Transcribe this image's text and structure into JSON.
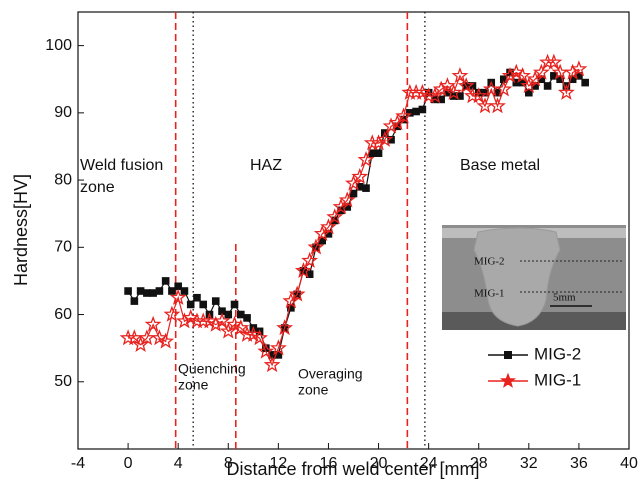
{
  "chart_data": {
    "type": "line",
    "xlabel": "Distance from weld center [mm]",
    "ylabel": "Hardness[HV]",
    "xlim": [
      -4,
      40
    ],
    "xticks": [
      -4,
      0,
      4,
      8,
      12,
      16,
      20,
      24,
      28,
      32,
      36,
      40
    ],
    "ylim": [
      40,
      105
    ],
    "yticks": [
      50,
      60,
      70,
      80,
      90,
      100
    ],
    "legend": "lower right",
    "annotations": [
      "Weld fusion",
      "zone",
      "HAZ",
      "Base metal",
      "Quenching",
      "zone",
      "Overaging",
      "zone"
    ],
    "vlines": [
      {
        "x": 3.8,
        "color": "#e8231f",
        "style": "dashed"
      },
      {
        "x": 5.2,
        "color": "#222222",
        "style": "dotted"
      },
      {
        "x": 8.6,
        "color": "#e8231f",
        "style": "dashed",
        "top": 70.5
      },
      {
        "x": 22.3,
        "color": "#e8231f",
        "style": "dashed"
      },
      {
        "x": 23.7,
        "color": "#222222",
        "style": "dotted"
      }
    ],
    "inset": {
      "labels": [
        "MIG-2",
        "MIG-1",
        "5mm"
      ]
    },
    "series": [
      {
        "name": "MIG-2",
        "color": "#111111",
        "marker": "square",
        "x": [
          0,
          0.5,
          1,
          1.5,
          2,
          2.5,
          3,
          3.5,
          4,
          4.5,
          5,
          5.5,
          6,
          6.5,
          7,
          7.5,
          8,
          8.5,
          9,
          9.5,
          10,
          10.5,
          11,
          11.5,
          12,
          12.5,
          13,
          13.5,
          14,
          14.5,
          15,
          15.5,
          16,
          16.5,
          17,
          17.5,
          18,
          18.5,
          19,
          19.5,
          20,
          20.5,
          21,
          21.5,
          22,
          22.5,
          23,
          23.5,
          24,
          24.5,
          25,
          25.5,
          26,
          26.5,
          27,
          27.5,
          28,
          28.5,
          29,
          29.5,
          30,
          30.5,
          31,
          31.5,
          32,
          32.5,
          33,
          33.5,
          34,
          34.5,
          35,
          35.5,
          36,
          36.5
        ],
        "values": [
          63.5,
          62,
          63.5,
          63.2,
          63.2,
          63.5,
          65,
          63.5,
          64.2,
          63.5,
          61.5,
          62.5,
          61.5,
          60,
          62,
          60.5,
          60,
          61.5,
          60,
          59.5,
          58,
          57.5,
          55,
          54,
          54,
          58,
          61,
          63,
          66.5,
          66,
          70,
          71,
          72,
          74,
          75.5,
          76,
          78,
          79,
          78.8,
          84,
          84,
          87,
          86,
          88,
          89,
          90,
          90.2,
          90.5,
          93,
          92,
          92,
          93,
          92.5,
          92.5,
          94,
          94,
          93,
          93,
          94.5,
          93,
          95,
          96,
          94.5,
          94.5,
          93,
          94,
          95,
          94,
          95.5,
          95,
          94,
          95,
          95.5,
          94.5
        ]
      },
      {
        "name": "MIG-1",
        "color": "#e8231f",
        "marker": "star",
        "x": [
          0,
          0.5,
          1,
          1.5,
          2,
          2.5,
          3,
          3.5,
          4,
          4.5,
          5,
          5.5,
          6,
          6.5,
          7,
          7.5,
          8,
          8.5,
          9,
          9.5,
          10,
          10.5,
          11,
          11.5,
          12,
          12.5,
          13,
          13.5,
          14,
          14.5,
          15,
          15.5,
          16,
          16.5,
          17,
          17.5,
          18,
          18.5,
          19,
          19.5,
          20,
          20.5,
          21,
          21.5,
          22,
          22.5,
          23,
          23.5,
          24,
          24.5,
          25,
          25.5,
          26,
          26.5,
          27,
          27.5,
          28,
          28.5,
          29,
          29.5,
          30,
          30.5,
          31,
          31.5,
          32,
          32.5,
          33,
          33.5,
          34,
          34.5,
          35,
          35.5,
          36
        ],
        "values": [
          56.5,
          56.5,
          55.5,
          56.5,
          58.5,
          56.5,
          56,
          60,
          62.5,
          59,
          59.5,
          59,
          59,
          59,
          58.5,
          59,
          57.5,
          58.5,
          58,
          57,
          57,
          56.5,
          54.5,
          52.5,
          55,
          58,
          62,
          63,
          66.5,
          68,
          70,
          72,
          73,
          74.5,
          76,
          77,
          79.5,
          80.5,
          83,
          85.5,
          85.5,
          86,
          88,
          88.5,
          89.5,
          93,
          93,
          93,
          92.5,
          92.5,
          93.5,
          94,
          93,
          95.5,
          94,
          92.5,
          92.5,
          91,
          93.5,
          91,
          93.5,
          95.5,
          96,
          95.5,
          94,
          95,
          96,
          97.5,
          97.5,
          96,
          93,
          96,
          96.5
        ]
      }
    ]
  }
}
